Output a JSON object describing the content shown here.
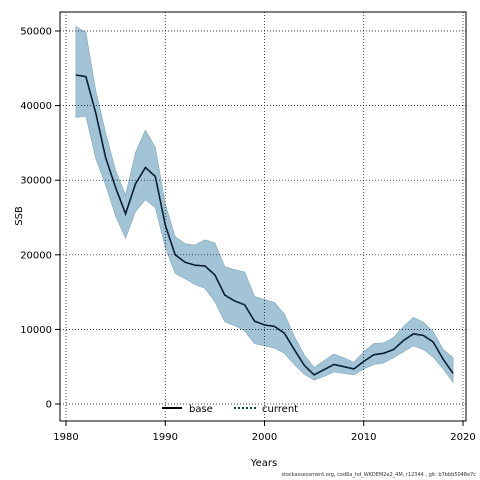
{
  "chart_data": {
    "type": "line",
    "xlabel": "Years",
    "ylabel": "SSB",
    "xlim": [
      1980,
      2020
    ],
    "ylim": [
      -2000,
      52500
    ],
    "x_ticks": [
      1980,
      1990,
      2000,
      2010,
      2020
    ],
    "y_ticks": [
      0,
      10000,
      20000,
      30000,
      40000,
      50000
    ],
    "grid": true,
    "grid_style": "dotted",
    "legend_placement": "bottom-center",
    "years": [
      1981,
      1982,
      1983,
      1984,
      1985,
      1986,
      1987,
      1988,
      1989,
      1990,
      1991,
      1992,
      1993,
      1994,
      1995,
      1996,
      1997,
      1998,
      1999,
      2000,
      2001,
      2002,
      2003,
      2004,
      2005,
      2006,
      2007,
      2008,
      2009,
      2010,
      2011,
      2012,
      2013,
      2014,
      2015,
      2016,
      2017,
      2018,
      2019
    ],
    "series": [
      {
        "name": "base",
        "style": "solid",
        "color": "#000000",
        "values": [
          44100,
          43900,
          39000,
          33000,
          29000,
          25500,
          29500,
          31700,
          30500,
          24000,
          20000,
          19000,
          18600,
          18500,
          17300,
          14600,
          13800,
          13300,
          11100,
          10600,
          10400,
          9500,
          7300,
          5200,
          3900,
          4600,
          5300,
          5000,
          4700,
          5700,
          6600,
          6800,
          7300,
          8500,
          9400,
          9200,
          8300,
          6000,
          4100
        ]
      },
      {
        "name": "current",
        "style": "dotted",
        "color": "#0a3a5a",
        "values": [
          44100,
          43900,
          39000,
          33000,
          29000,
          25500,
          29500,
          31700,
          30500,
          24000,
          20000,
          19000,
          18600,
          18500,
          17300,
          14600,
          13800,
          13300,
          11100,
          10600,
          10400,
          9500,
          7300,
          5200,
          3900,
          4600,
          5300,
          5000,
          4700,
          5700,
          6600,
          6800,
          7300,
          8500,
          9400,
          9200,
          8300,
          6000,
          4100
        ]
      }
    ],
    "band": {
      "color": "#a2c4d6",
      "upper": [
        50600,
        49800,
        42000,
        36300,
        31300,
        28000,
        33700,
        36700,
        34400,
        26800,
        22400,
        21500,
        21300,
        22000,
        21600,
        18400,
        18000,
        17700,
        14400,
        14000,
        13600,
        12100,
        9100,
        6600,
        4900,
        5800,
        6700,
        6200,
        5600,
        7000,
        8100,
        8200,
        8900,
        10400,
        11600,
        11000,
        9700,
        7300,
        6200
      ],
      "lower": [
        38400,
        38600,
        32900,
        29300,
        25200,
        22200,
        25800,
        27400,
        26300,
        21000,
        17500,
        16800,
        16000,
        15500,
        13700,
        11000,
        10500,
        9800,
        8100,
        7800,
        7500,
        6800,
        5300,
        4000,
        3200,
        3700,
        4300,
        4100,
        3900,
        4700,
        5300,
        5500,
        6200,
        7000,
        7800,
        7300,
        6300,
        4700,
        2900
      ]
    },
    "legend": [
      {
        "label": "base",
        "style": "solid"
      },
      {
        "label": "current",
        "style": "dotted"
      }
    ]
  },
  "footer_text": "stockassessment.org,  cod6a_hd_WKDEM2e2_4M,  r12344 ,  git:  b7bbb5048e7c"
}
